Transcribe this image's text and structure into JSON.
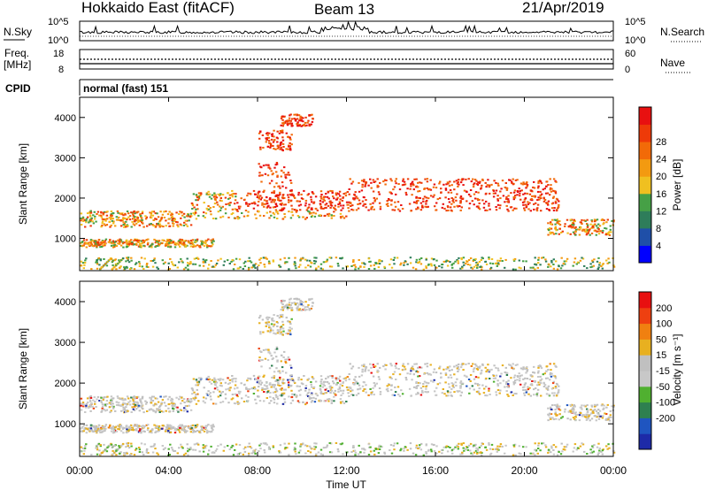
{
  "header": {
    "radar": "Hokkaido East (fitACF)",
    "beam": "Beam 13",
    "date": "21/Apr/2019"
  },
  "noise_panel": {
    "left_label": "N.Sky",
    "right_label": "N.Search",
    "left_ticks": [
      "10^5",
      "10^0"
    ],
    "right_ticks": [
      "10^5",
      "10^0"
    ]
  },
  "freq_panel": {
    "left_label": "Freq.",
    "left_unit": "[MHz]",
    "right_label": "Nave",
    "left_ticks": [
      "18",
      "8"
    ],
    "right_ticks": [
      "60",
      "0"
    ]
  },
  "cpid_panel": {
    "label": "CPID",
    "value": "normal (fast) 151"
  },
  "colors": {
    "power_scale": [
      "#0000ff",
      "#1f4fa8",
      "#2e7d5a",
      "#46a046",
      "#f0c020",
      "#f39a10",
      "#f26a08",
      "#ee3a08",
      "#e81010"
    ],
    "velocity_scale": [
      "#1d2aa8",
      "#1f55c0",
      "#2e8050",
      "#50b030",
      "#c8c8c8",
      "#c0c0c0",
      "#e8b020",
      "#f08010",
      "#ee4010",
      "#e81010"
    ]
  },
  "chart_data": [
    {
      "type": "heatmap",
      "name": "power",
      "ylabel": "Slant Range [km]",
      "ylim": [
        200,
        4500
      ],
      "yticks": [
        "1000",
        "2000",
        "3000",
        "4000"
      ],
      "xlim": [
        "00:00",
        "24:00"
      ],
      "colorbar": {
        "label": "Power [dB]",
        "range": [
          0,
          32
        ],
        "ticks": [
          "4",
          "8",
          "12",
          "16",
          "20",
          "24",
          "28"
        ]
      },
      "echo_bands": [
        {
          "start_h": 0,
          "end_h": 6,
          "range_km": [
            800,
            1000
          ]
        },
        {
          "start_h": 0,
          "end_h": 5,
          "range_km": [
            1300,
            1700
          ]
        },
        {
          "start_h": 5,
          "end_h": 12,
          "range_km": [
            1500,
            2200
          ]
        },
        {
          "start_h": 8,
          "end_h": 9.5,
          "range_km": [
            1800,
            2900
          ]
        },
        {
          "start_h": 8,
          "end_h": 9.5,
          "range_km": [
            3200,
            3700
          ]
        },
        {
          "start_h": 9,
          "end_h": 10.5,
          "range_km": [
            3800,
            4100
          ]
        },
        {
          "start_h": 12,
          "end_h": 21.5,
          "range_km": [
            1700,
            2500
          ]
        },
        {
          "start_h": 21,
          "end_h": 24,
          "range_km": [
            1100,
            1500
          ]
        }
      ]
    },
    {
      "type": "heatmap",
      "name": "velocity",
      "ylabel": "Slant Range [km]",
      "ylim": [
        200,
        4500
      ],
      "yticks": [
        "1000",
        "2000",
        "3000",
        "4000"
      ],
      "xlim": [
        "00:00",
        "24:00"
      ],
      "colorbar": {
        "label": "Velocity [m s⁻¹]",
        "ticks": [
          "200",
          "100",
          "50",
          "15",
          "-15",
          "-50",
          "-100",
          "-200"
        ]
      }
    }
  ],
  "x_axis": {
    "label": "Time UT",
    "ticks": [
      "00:00",
      "04:00",
      "08:00",
      "12:00",
      "16:00",
      "20:00",
      "00:00"
    ]
  }
}
